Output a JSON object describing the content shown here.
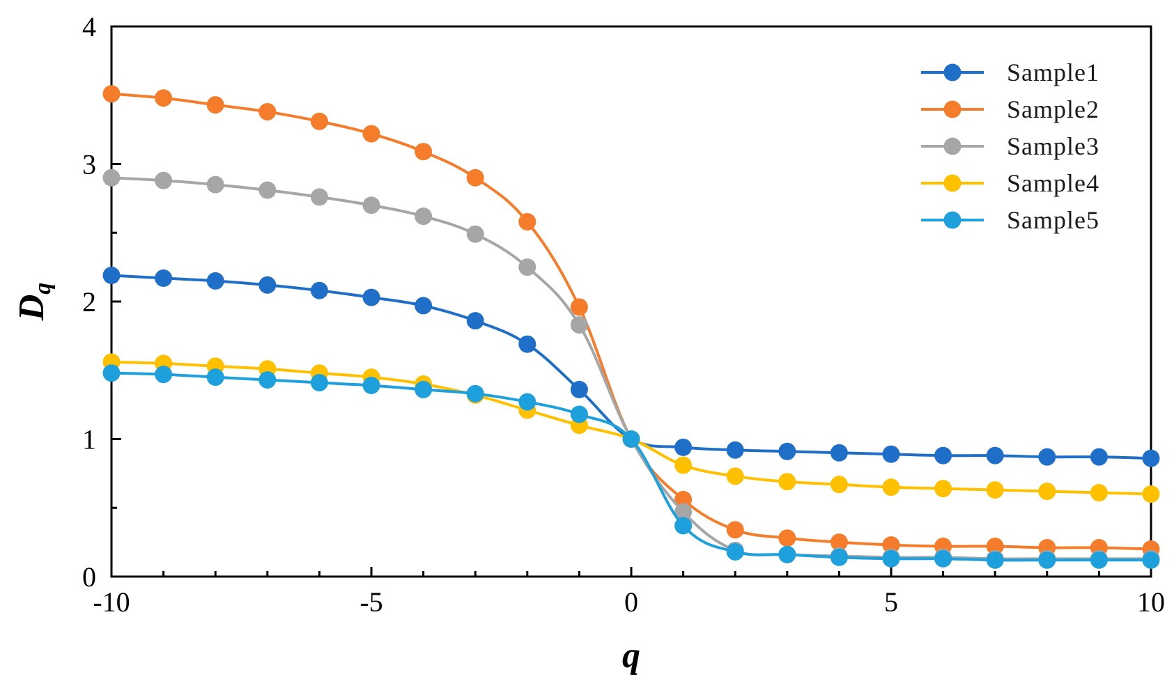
{
  "chart_data": {
    "type": "line",
    "title": "",
    "xlabel": "q",
    "ylabel": "D",
    "ylabel_subscript": "q",
    "xlim": [
      -10,
      10
    ],
    "ylim": [
      0,
      4
    ],
    "xticks": [
      -10,
      -5,
      0,
      5,
      10
    ],
    "xtick_labels": [
      "-10",
      "-5",
      "0",
      "5",
      "10"
    ],
    "yticks": [
      0,
      1,
      2,
      3,
      4
    ],
    "ytick_labels": [
      "0",
      "1",
      "2",
      "3",
      "4"
    ],
    "grid": false,
    "legend_position": "top-right",
    "x": [
      -10,
      -9,
      -8,
      -7,
      -6,
      -5,
      -4,
      -3,
      -2,
      -1,
      0,
      1,
      2,
      3,
      4,
      5,
      6,
      7,
      8,
      9,
      10
    ],
    "series": [
      {
        "name": "Sample1",
        "color": "#1f6fc8",
        "values": [
          2.19,
          2.17,
          2.15,
          2.12,
          2.08,
          2.03,
          1.97,
          1.86,
          1.69,
          1.36,
          1.0,
          0.94,
          0.92,
          0.91,
          0.9,
          0.89,
          0.88,
          0.88,
          0.87,
          0.87,
          0.86
        ]
      },
      {
        "name": "Sample2",
        "color": "#f47c2a",
        "values": [
          3.51,
          3.48,
          3.43,
          3.38,
          3.31,
          3.22,
          3.09,
          2.9,
          2.58,
          1.96,
          1.0,
          0.56,
          0.34,
          0.28,
          0.25,
          0.23,
          0.22,
          0.22,
          0.21,
          0.21,
          0.2
        ]
      },
      {
        "name": "Sample3",
        "color": "#a6a6a6",
        "values": [
          2.9,
          2.88,
          2.85,
          2.81,
          2.76,
          2.7,
          2.62,
          2.49,
          2.25,
          1.83,
          1.0,
          0.47,
          0.19,
          0.16,
          0.15,
          0.14,
          0.14,
          0.13,
          0.13,
          0.13,
          0.13
        ]
      },
      {
        "name": "Sample4",
        "color": "#ffc000",
        "values": [
          1.56,
          1.55,
          1.53,
          1.51,
          1.48,
          1.45,
          1.4,
          1.32,
          1.21,
          1.1,
          1.0,
          0.81,
          0.73,
          0.69,
          0.67,
          0.65,
          0.64,
          0.63,
          0.62,
          0.61,
          0.6
        ]
      },
      {
        "name": "Sample5",
        "color": "#1ea0dc",
        "values": [
          1.48,
          1.47,
          1.45,
          1.43,
          1.41,
          1.39,
          1.36,
          1.33,
          1.27,
          1.18,
          1.0,
          0.37,
          0.18,
          0.16,
          0.14,
          0.13,
          0.13,
          0.12,
          0.12,
          0.12,
          0.12
        ]
      }
    ]
  }
}
